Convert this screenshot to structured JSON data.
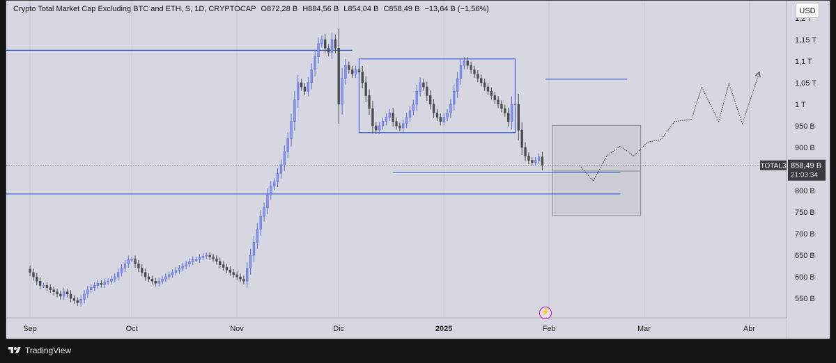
{
  "header": {
    "title": "Crypto Total Market Cap Excluding BTC and ETH, S, 1D, CRYPTOCAP",
    "open": "O872,28 B",
    "high": "H884,56 B",
    "low": "L854,04 B",
    "close": "C858,49 B",
    "change": "−13,64 B (−1,56%)"
  },
  "currency_button": "USD",
  "price_tag": {
    "symbol": "TOTAL3",
    "price": "858,49 B",
    "countdown": "21:03:34"
  },
  "footer": {
    "brand": "TradingView"
  },
  "chart_data": {
    "type": "candlestick",
    "y_unit": "B",
    "ylim": [
      505,
      1240
    ],
    "y_ticks": [
      {
        "value": 1200,
        "label": "1,2 T"
      },
      {
        "value": 1150,
        "label": "1,15 T"
      },
      {
        "value": 1100,
        "label": "1,1 T"
      },
      {
        "value": 1050,
        "label": "1,05 T"
      },
      {
        "value": 1000,
        "label": "1 T"
      },
      {
        "value": 950,
        "label": "950 B"
      },
      {
        "value": 900,
        "label": "900 B"
      },
      {
        "value": 800,
        "label": "800 B"
      },
      {
        "value": 750,
        "label": "750 B"
      },
      {
        "value": 700,
        "label": "700 B"
      },
      {
        "value": 650,
        "label": "650 B"
      },
      {
        "value": 600,
        "label": "600 B"
      },
      {
        "value": 550,
        "label": "550 B"
      }
    ],
    "x_ticks": [
      {
        "day": 0,
        "label": "Sep",
        "bold": false
      },
      {
        "day": 30,
        "label": "Oct",
        "bold": false
      },
      {
        "day": 61,
        "label": "Nov",
        "bold": false
      },
      {
        "day": 91,
        "label": "Dic",
        "bold": false
      },
      {
        "day": 122,
        "label": "2025",
        "bold": true
      },
      {
        "day": 153,
        "label": "Feb",
        "bold": false
      },
      {
        "day": 181,
        "label": "Mar",
        "bold": false
      },
      {
        "day": 212,
        "label": "Abr",
        "bold": false
      }
    ],
    "x_range": [
      -7,
      223
    ],
    "last_close": 858.49,
    "candles_close": [
      610,
      600,
      590,
      580,
      580,
      575,
      570,
      565,
      560,
      555,
      565,
      560,
      550,
      545,
      540,
      548,
      560,
      570,
      575,
      580,
      585,
      582,
      588,
      590,
      595,
      600,
      610,
      620,
      630,
      640,
      640,
      630,
      620,
      610,
      600,
      595,
      590,
      585,
      590,
      595,
      600,
      605,
      610,
      615,
      620,
      625,
      630,
      635,
      640,
      640,
      645,
      648,
      650,
      646,
      642,
      636,
      628,
      622,
      616,
      610,
      605,
      600,
      595,
      590,
      620,
      650,
      680,
      710,
      740,
      760,
      790,
      810,
      820,
      840,
      860,
      890,
      920,
      960,
      1010,
      1050,
      1040,
      1030,
      1050,
      1080,
      1110,
      1140,
      1150,
      1130,
      1120,
      1150,
      1130,
      1000,
      1060,
      1090,
      1080,
      1070,
      1080,
      1075,
      1050,
      1020,
      990,
      950,
      940,
      950,
      960,
      970,
      980,
      960,
      950,
      945,
      955,
      970,
      985,
      1000,
      1030,
      1050,
      1040,
      1020,
      1000,
      980,
      970,
      960,
      970,
      980,
      1000,
      1030,
      1060,
      1090,
      1100,
      1090,
      1080,
      1070,
      1060,
      1050,
      1040,
      1030,
      1020,
      1010,
      1000,
      990,
      980,
      960,
      1000,
      1000,
      940,
      900,
      880,
      870,
      865,
      870,
      878,
      858.49
    ],
    "level_lines": [
      {
        "from_day": -7,
        "to_day": 95,
        "value": 1125
      },
      {
        "from_day": -7,
        "to_day": 174,
        "value": 792
      },
      {
        "from_day": 107,
        "to_day": 174,
        "value": 842
      }
    ],
    "boxes": [
      {
        "from_day": 97,
        "to_day": 143,
        "top": 1105,
        "bottom": 934
      },
      {
        "from_day": 152,
        "to_day": 176,
        "top": 1058,
        "bottom": 1058
      }
    ],
    "gray_boxes": [
      {
        "from_day": 154,
        "to_day": 180,
        "top": 951,
        "bottom": 845
      },
      {
        "from_day": 154,
        "to_day": 180,
        "top": 845,
        "bottom": 742
      }
    ],
    "projection_path": [
      [
        162,
        858
      ],
      [
        166,
        822
      ],
      [
        170,
        880
      ],
      [
        174,
        903
      ],
      [
        178,
        880
      ],
      [
        182,
        912
      ],
      [
        186,
        918
      ],
      [
        190,
        960
      ],
      [
        195,
        965
      ],
      [
        198,
        1040
      ],
      [
        203,
        960
      ],
      [
        206,
        1048
      ],
      [
        210,
        955
      ],
      [
        215,
        1075
      ]
    ]
  }
}
